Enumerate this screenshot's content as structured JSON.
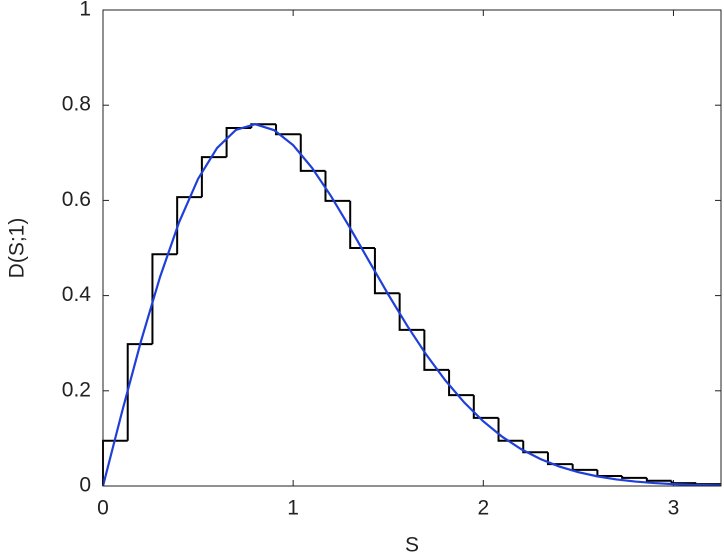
{
  "chart_data": {
    "type": "histogram",
    "xlabel": "S",
    "ylabel": "D(S;1)",
    "bins": [
      0,
      0.13,
      0.26,
      0.39,
      0.52,
      0.65,
      0.78,
      0.91,
      1.04,
      1.17,
      1.3,
      1.43,
      1.56,
      1.69,
      1.82,
      1.95,
      2.08,
      2.21,
      2.34,
      2.47,
      2.6,
      2.73,
      2.86,
      2.99,
      3.12,
      3.25
    ],
    "values": [
      0.095,
      0.298,
      0.487,
      0.607,
      0.691,
      0.752,
      0.76,
      0.739,
      0.662,
      0.599,
      0.5,
      0.405,
      0.328,
      0.244,
      0.191,
      0.143,
      0.095,
      0.071,
      0.046,
      0.034,
      0.021,
      0.017,
      0.011,
      0.006,
      0.004
    ],
    "color": "#000000",
    "lines": [
      {
        "color": "#1f3fd8",
        "x": [
          0,
          0.1,
          0.2,
          0.3,
          0.4,
          0.5,
          0.6,
          0.7,
          0.8,
          0.9,
          1.0,
          1.1,
          1.2,
          1.3,
          1.4,
          1.5,
          1.6,
          1.7,
          1.8,
          1.9,
          2.0,
          2.1,
          2.2,
          2.3,
          2.4,
          2.5,
          2.6,
          2.7,
          2.8,
          2.9,
          3.0,
          3.1,
          3.2,
          3.25
        ],
        "values": [
          0,
          0.1558,
          0.3044,
          0.4391,
          0.5541,
          0.6453,
          0.7103,
          0.7484,
          0.7601,
          0.7476,
          0.7161,
          0.668,
          0.6083,
          0.5415,
          0.4718,
          0.4025,
          0.3365,
          0.2759,
          0.2219,
          0.1753,
          0.1358,
          0.1033,
          0.0772,
          0.0567,
          0.0409,
          0.029,
          0.0202,
          0.0138,
          0.0093,
          0.0062,
          0.004,
          0.0025,
          0.0016,
          0.0013
        ]
      }
    ],
    "xlim": [
      0,
      3.25
    ],
    "ylim": [
      0,
      1
    ],
    "xticks": [
      0,
      1,
      2,
      3
    ],
    "yticks": [
      0,
      0.2,
      0.4,
      0.6,
      0.8,
      1
    ]
  }
}
